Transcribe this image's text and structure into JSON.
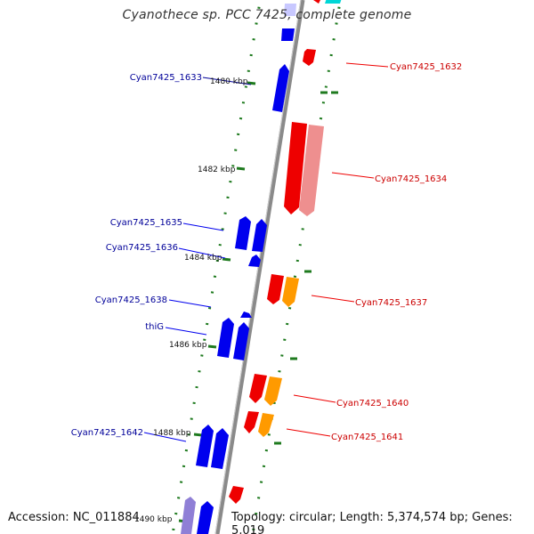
{
  "title": "Cyanothece sp. PCC 7425, complete genome",
  "footer": {
    "accession": "Accession: NC_011884",
    "topology": "Topology: circular; Length: 5,374,574 bp; Genes: 5,019"
  },
  "colors": {
    "backbone": "#8a8a8a",
    "ruler_dots": "#1e7a1e",
    "forward_gene": "#0000ee",
    "forward_gene_light": "#8f7fd6",
    "reverse_gene": "#ee0000",
    "reverse_gene_light": "#ee8f8f",
    "reverse_orange": "#ff9a00",
    "cyan_gene": "#00d6d6",
    "forward_label": "#000099",
    "reverse_label": "#cc0000"
  },
  "kbp_ticks": [
    {
      "label": "1480 kbp"
    },
    {
      "label": "1482 kbp"
    },
    {
      "label": "1484 kbp"
    },
    {
      "label": "1486 kbp"
    },
    {
      "label": "1488 kbp"
    },
    {
      "label": "1490 kbp"
    }
  ],
  "gene_labels_left": [
    {
      "label": "Cyan7425_1633"
    },
    {
      "label": "Cyan7425_1635"
    },
    {
      "label": "Cyan7425_1636"
    },
    {
      "label": "Cyan7425_1638"
    },
    {
      "label": "thiG"
    },
    {
      "label": "Cyan7425_1642"
    }
  ],
  "gene_labels_right": [
    {
      "label": "Cyan7425_1632"
    },
    {
      "label": "Cyan7425_1634"
    },
    {
      "label": "Cyan7425_1637"
    },
    {
      "label": "Cyan7425_1640"
    },
    {
      "label": "Cyan7425_1641"
    }
  ]
}
